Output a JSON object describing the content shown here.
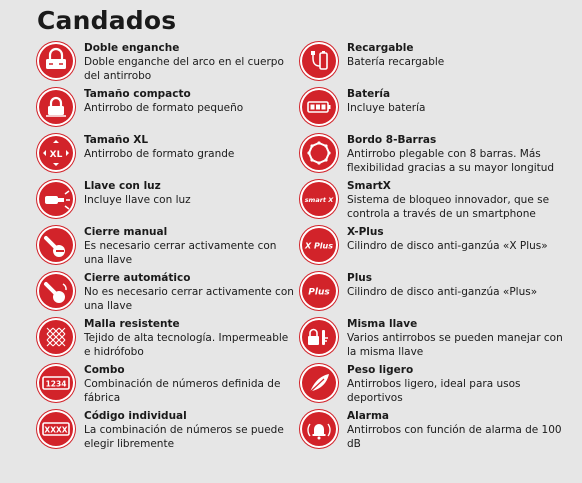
{
  "title": "Candados",
  "left": [
    {
      "name": "Doble enganche",
      "desc": "Doble enganche del arco en el cuerpo del antirrobo",
      "icon": "double-lock-icon"
    },
    {
      "name": "Tamaño compacto",
      "desc": "Antirrobo de formato pequeño",
      "icon": "compact-lock-icon"
    },
    {
      "name": "Tamaño XL",
      "desc": "Antirrobo de formato grande",
      "icon": "xl-size-icon",
      "icon_text": "XL"
    },
    {
      "name": "Llave con luz",
      "desc": "Incluye llave con luz",
      "icon": "key-light-icon"
    },
    {
      "name": "Cierre manual",
      "desc": "Es necesario cerrar activamente con una llave",
      "icon": "manual-close-icon"
    },
    {
      "name": "Cierre automático",
      "desc": "No es necesario cerrar activamente con una llave",
      "icon": "auto-close-icon"
    },
    {
      "name": "Malla resistente",
      "desc": "Tejido de alta tecnología. Impermeable e hidrófobo",
      "icon": "mesh-icon"
    },
    {
      "name": "Combo",
      "desc": "Combinación de números definida de fábrica",
      "icon": "combo-icon",
      "icon_text": "1234"
    },
    {
      "name": "Código individual",
      "desc": "La combinación de números se puede elegir libremente",
      "icon": "individual-code-icon",
      "icon_text": "XXXX"
    }
  ],
  "right": [
    {
      "name": "Recargable",
      "desc": "Batería recargable",
      "icon": "rechargeable-icon"
    },
    {
      "name": "Batería",
      "desc": "Incluye batería",
      "icon": "battery-icon"
    },
    {
      "name": "Bordo 8-Barras",
      "desc": "Antirrobo plegable con 8 barras. Más flexibilidad gracias a su mayor longitud",
      "icon": "folding-lock-icon"
    },
    {
      "name": "SmartX",
      "desc": "Sistema de bloqueo innovador, que se controla a través de un smartphone",
      "icon": "smartx-icon",
      "icon_text": "smart X"
    },
    {
      "name": "X-Plus",
      "desc": "Cilindro de disco anti-ganzúa «X Plus»",
      "icon": "x-plus-icon",
      "icon_text": "X Plus"
    },
    {
      "name": "Plus",
      "desc": "Cilindro de disco anti-ganzúa «Plus»",
      "icon": "plus-icon",
      "icon_text": "Plus"
    },
    {
      "name": "Misma llave",
      "desc": "Varios antirrobos se pueden manejar con la misma llave",
      "icon": "same-key-icon"
    },
    {
      "name": "Peso ligero",
      "desc": "Antirrobos ligero, ideal para usos deportivos",
      "icon": "feather-icon"
    },
    {
      "name": "Alarma",
      "desc": "Antirrobos con función de alarma de 100 dB",
      "icon": "alarm-icon"
    }
  ]
}
